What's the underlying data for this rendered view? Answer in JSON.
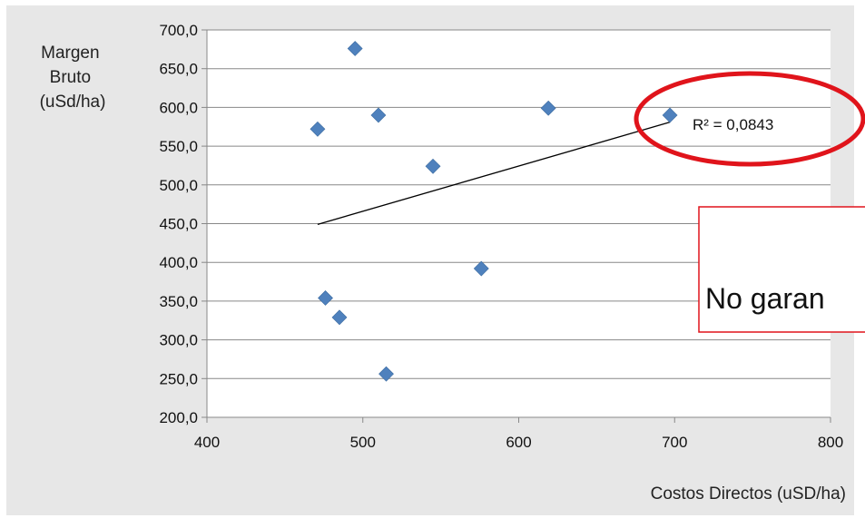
{
  "chart_data": {
    "type": "scatter",
    "title": "",
    "ylabel_lines": [
      "Margen",
      "Bruto",
      "(uSd/ha)"
    ],
    "xlabel": "Costos Directos (uSD/ha)",
    "xlim": [
      400,
      800
    ],
    "ylim": [
      200,
      700
    ],
    "x_ticks": [
      400,
      500,
      600,
      700,
      800
    ],
    "x_tick_labels": [
      "400",
      "500",
      "600",
      "700",
      "800"
    ],
    "y_ticks": [
      200,
      250,
      300,
      350,
      400,
      450,
      500,
      550,
      600,
      650,
      700
    ],
    "y_tick_labels": [
      "200,0",
      "250,0",
      "300,0",
      "350,0",
      "400,0",
      "450,0",
      "500,0",
      "550,0",
      "600,0",
      "650,0",
      "700,0"
    ],
    "grid": "horizontal",
    "points": [
      {
        "x": 495,
        "y": 676
      },
      {
        "x": 471,
        "y": 572
      },
      {
        "x": 510,
        "y": 590
      },
      {
        "x": 545,
        "y": 524
      },
      {
        "x": 619,
        "y": 599
      },
      {
        "x": 697,
        "y": 590
      },
      {
        "x": 576,
        "y": 392
      },
      {
        "x": 476,
        "y": 354
      },
      {
        "x": 485,
        "y": 329
      },
      {
        "x": 515,
        "y": 256
      }
    ],
    "trendline": {
      "x": [
        471,
        697
      ],
      "y": [
        449,
        581
      ]
    },
    "r2_label": "R² = 0,0843",
    "colors": {
      "marker": "#4f81bd",
      "trendline": "#000000",
      "grid": "#888888",
      "highlight": "#e0141b",
      "plot_area_bg": "#e7e7e7"
    }
  },
  "callout": {
    "text": "No garan"
  }
}
